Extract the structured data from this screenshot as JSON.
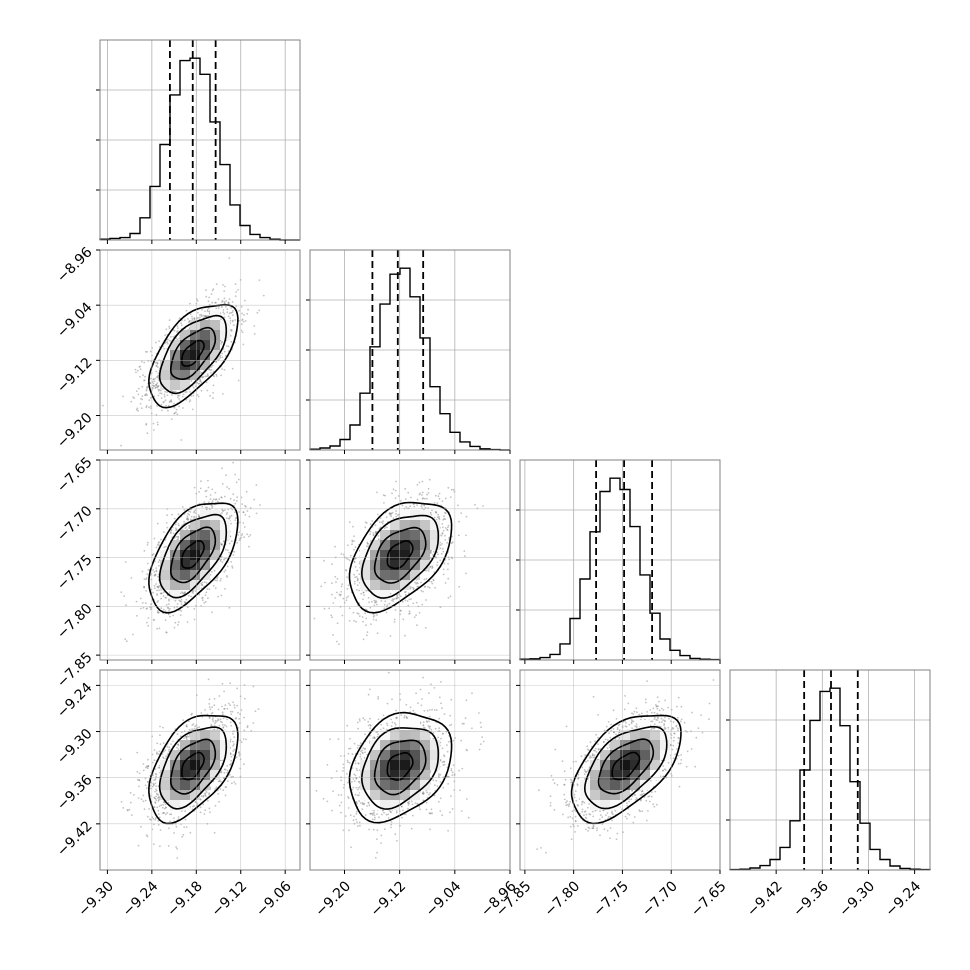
{
  "chart_data": {
    "type": "corner",
    "parameters": 4,
    "grid": true,
    "colors": {
      "scatter": "#7a7a7a",
      "contour": "#000000",
      "grid": "#b0b0b0",
      "frame": "#808080",
      "quantile": "#000000"
    },
    "axes": [
      {
        "range": [
          -9.31,
          -9.04
        ],
        "ticks": [
          -9.3,
          -9.24,
          -9.18,
          -9.12,
          -9.06
        ],
        "tick_labels": [
          "−9.30",
          "−9.24",
          "−9.18",
          "−9.12",
          "−9.06"
        ]
      },
      {
        "range": [
          -9.25,
          -8.96
        ],
        "ticks": [
          -9.2,
          -9.12,
          -9.04,
          -8.96
        ],
        "tick_labels": [
          "−9.20",
          "−9.12",
          "−9.04",
          "−8.96"
        ]
      },
      {
        "range": [
          -7.855,
          -7.65
        ],
        "ticks": [
          -7.85,
          -7.8,
          -7.75,
          -7.7,
          -7.65
        ],
        "tick_labels": [
          "−7.85",
          "−7.80",
          "−7.75",
          "−7.70",
          "−7.65"
        ]
      },
      {
        "range": [
          -9.48,
          -9.22
        ],
        "ticks": [
          -9.42,
          -9.36,
          -9.3,
          -9.24
        ],
        "tick_labels": [
          "−9.42",
          "−9.36",
          "−9.30",
          "−9.24"
        ]
      }
    ],
    "quantiles": [
      [
        -9.2156,
        -9.1848,
        -9.1539
      ],
      [
        -9.1595,
        -9.1227,
        -9.0859
      ],
      [
        -7.777,
        -7.7483,
        -7.7196
      ],
      [
        -9.3836,
        -9.3487,
        -9.3139
      ]
    ],
    "histograms": [
      [
        2,
        4,
        6,
        16,
        55,
        133,
        237,
        360,
        445,
        451,
        411,
        293,
        187,
        87,
        36,
        14,
        6,
        2,
        0,
        0
      ],
      [
        2,
        5,
        10,
        26,
        62,
        141,
        256,
        362,
        436,
        451,
        380,
        278,
        157,
        90,
        44,
        20,
        9,
        3,
        1,
        0
      ],
      [
        2,
        3,
        6,
        14,
        40,
        103,
        201,
        318,
        418,
        451,
        423,
        331,
        211,
        116,
        52,
        24,
        11,
        4,
        2,
        1
      ],
      [
        1,
        2,
        5,
        11,
        26,
        56,
        122,
        248,
        371,
        443,
        451,
        358,
        219,
        116,
        51,
        26,
        10,
        4,
        2,
        1
      ]
    ],
    "pairs": [
      {
        "x": 0,
        "y": 1,
        "center": [
          -9.185,
          -9.11
        ],
        "spread": [
          0.03,
          0.037
        ],
        "rho": 0.6
      },
      {
        "x": 0,
        "y": 2,
        "center": [
          -9.185,
          -7.747
        ],
        "spread": [
          0.03,
          0.028
        ],
        "rho": 0.55
      },
      {
        "x": 1,
        "y": 2,
        "center": [
          -9.12,
          -7.747
        ],
        "spread": [
          0.037,
          0.028
        ],
        "rho": 0.45
      },
      {
        "x": 0,
        "y": 3,
        "center": [
          -9.185,
          -9.345
        ],
        "spread": [
          0.03,
          0.035
        ],
        "rho": 0.5
      },
      {
        "x": 1,
        "y": 3,
        "center": [
          -9.12,
          -9.345
        ],
        "spread": [
          0.037,
          0.035
        ],
        "rho": 0.3
      },
      {
        "x": 2,
        "y": 3,
        "center": [
          -7.747,
          -9.345
        ],
        "spread": [
          0.028,
          0.035
        ],
        "rho": 0.55
      }
    ],
    "contour_sigmas": [
      0.5,
      1.0,
      1.5,
      2.0
    ]
  }
}
